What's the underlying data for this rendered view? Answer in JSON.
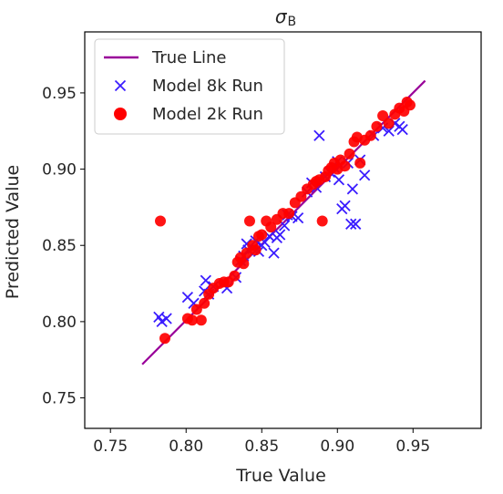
{
  "chart_data": {
    "type": "scatter",
    "title": "σ",
    "title_subscript": "B",
    "xlabel": "True Value",
    "ylabel": "Predicted Value",
    "xlim": [
      0.733,
      0.995
    ],
    "ylim": [
      0.73,
      0.99
    ],
    "xticks": [
      0.75,
      0.8,
      0.85,
      0.9,
      0.95
    ],
    "yticks": [
      0.75,
      0.8,
      0.85,
      0.9,
      0.95
    ],
    "xtick_labels": [
      "0.75",
      "0.80",
      "0.85",
      "0.90",
      "0.95"
    ],
    "ytick_labels": [
      "0.75",
      "0.80",
      "0.85",
      "0.90",
      "0.95"
    ],
    "grid": false,
    "legend_position": "top-left",
    "true_line": {
      "name": "True Line",
      "color": "#990099",
      "x": [
        0.771,
        0.958
      ],
      "y": [
        0.772,
        0.958
      ]
    },
    "series": [
      {
        "name": "Model 8k Run",
        "marker": "x",
        "color": "#3a1cff",
        "x": [
          0.782,
          0.784,
          0.787,
          0.801,
          0.805,
          0.812,
          0.813,
          0.815,
          0.818,
          0.827,
          0.833,
          0.836,
          0.838,
          0.84,
          0.841,
          0.844,
          0.846,
          0.848,
          0.85,
          0.852,
          0.855,
          0.858,
          0.86,
          0.862,
          0.865,
          0.867,
          0.87,
          0.874,
          0.88,
          0.883,
          0.886,
          0.888,
          0.892,
          0.895,
          0.898,
          0.9,
          0.901,
          0.903,
          0.905,
          0.907,
          0.909,
          0.91,
          0.912,
          0.915,
          0.918,
          0.924,
          0.93,
          0.934,
          0.938,
          0.941,
          0.943
        ],
        "y": [
          0.803,
          0.8,
          0.802,
          0.816,
          0.812,
          0.82,
          0.827,
          0.818,
          0.823,
          0.822,
          0.829,
          0.84,
          0.843,
          0.851,
          0.847,
          0.848,
          0.853,
          0.846,
          0.85,
          0.852,
          0.856,
          0.845,
          0.855,
          0.857,
          0.863,
          0.87,
          0.869,
          0.868,
          0.885,
          0.891,
          0.888,
          0.922,
          0.895,
          0.898,
          0.901,
          0.905,
          0.893,
          0.874,
          0.876,
          0.904,
          0.864,
          0.887,
          0.864,
          0.906,
          0.896,
          0.922,
          0.927,
          0.925,
          0.93,
          0.928,
          0.926
        ]
      },
      {
        "name": "Model 2k Run",
        "marker": "o",
        "color": "#ff0000",
        "x": [
          0.783,
          0.786,
          0.801,
          0.804,
          0.807,
          0.81,
          0.812,
          0.815,
          0.818,
          0.822,
          0.825,
          0.828,
          0.832,
          0.834,
          0.836,
          0.838,
          0.84,
          0.842,
          0.844,
          0.846,
          0.848,
          0.85,
          0.853,
          0.856,
          0.86,
          0.864,
          0.868,
          0.872,
          0.876,
          0.88,
          0.884,
          0.886,
          0.888,
          0.89,
          0.892,
          0.894,
          0.896,
          0.898,
          0.9,
          0.902,
          0.905,
          0.908,
          0.911,
          0.913,
          0.915,
          0.918,
          0.922,
          0.926,
          0.93,
          0.934,
          0.938,
          0.941,
          0.944,
          0.946,
          0.948
        ],
        "y": [
          0.866,
          0.789,
          0.802,
          0.801,
          0.808,
          0.801,
          0.812,
          0.818,
          0.822,
          0.825,
          0.826,
          0.826,
          0.83,
          0.839,
          0.842,
          0.838,
          0.845,
          0.866,
          0.85,
          0.847,
          0.856,
          0.857,
          0.866,
          0.862,
          0.867,
          0.871,
          0.871,
          0.878,
          0.882,
          0.887,
          0.89,
          0.892,
          0.893,
          0.866,
          0.895,
          0.899,
          0.901,
          0.904,
          0.9,
          0.906,
          0.902,
          0.91,
          0.918,
          0.921,
          0.904,
          0.919,
          0.922,
          0.928,
          0.935,
          0.93,
          0.936,
          0.94,
          0.938,
          0.944,
          0.942
        ]
      }
    ]
  }
}
